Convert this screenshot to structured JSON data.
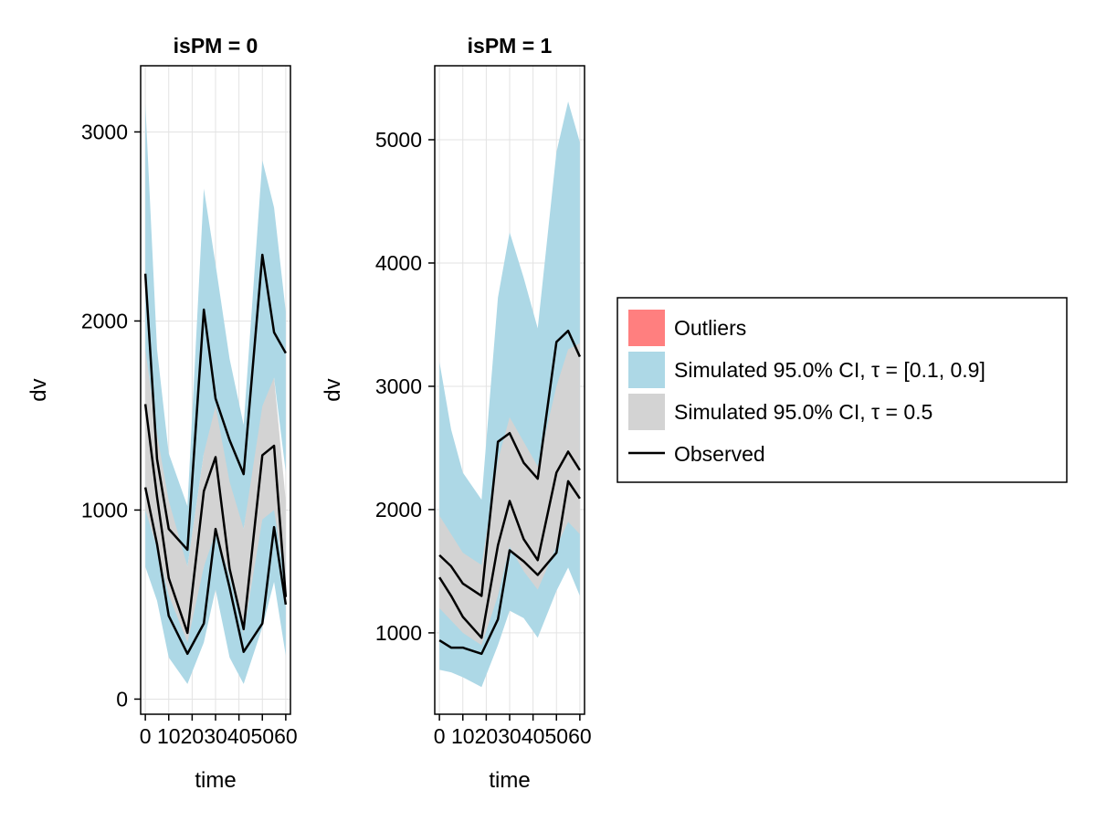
{
  "chart_data": [
    {
      "type": "area",
      "title": "isPM = 0",
      "xlabel": "time",
      "ylabel": "dv",
      "xlim": [
        -2,
        62
      ],
      "ylim": [
        -80,
        3350
      ],
      "xticks": [
        0,
        10,
        20,
        30,
        40,
        50,
        60
      ],
      "xtick_labels": [
        "0",
        "10",
        "20",
        "30",
        "40",
        "50",
        "60"
      ],
      "yticks": [
        0,
        1000,
        2000,
        3000
      ],
      "ytick_labels": [
        "0",
        "1000",
        "2000",
        "3000"
      ],
      "grid": true,
      "x": [
        0,
        5,
        10,
        18,
        25,
        30,
        36,
        42,
        50,
        55,
        60
      ],
      "bands": [
        {
          "name": "Simulated 95.0% CI, τ = [0.1, 0.9]",
          "which": "lower",
          "color": "#add8e6",
          "low": [
            700,
            520,
            220,
            80,
            300,
            580,
            220,
            80,
            380,
            620,
            230
          ],
          "high": [
            1200,
            1050,
            670,
            380,
            700,
            1030,
            800,
            430,
            980,
            1250,
            850
          ]
        },
        {
          "name": "Simulated 95.0% CI, τ = [0.1, 0.9]",
          "which": "upper",
          "color": "#add8e6",
          "low": [
            1700,
            1350,
            1000,
            700,
            1300,
            1200,
            1100,
            900,
            1500,
            1700,
            1200
          ],
          "high": [
            3150,
            1850,
            1300,
            1020,
            2700,
            2300,
            1800,
            1450,
            2850,
            2600,
            2050
          ]
        },
        {
          "name": "Simulated 95.0% CI, τ = 0.5",
          "which": "median",
          "color": "#d3d3d3",
          "low": [
            1000,
            800,
            550,
            300,
            700,
            880,
            650,
            350,
            950,
            1000,
            600
          ],
          "high": [
            1850,
            1400,
            1050,
            700,
            1300,
            1550,
            1150,
            900,
            1550,
            1700,
            1050
          ]
        }
      ],
      "series": [
        {
          "name": "Observed",
          "values": [
            1120,
            820,
            440,
            240,
            400,
            900,
            590,
            250,
            400,
            910,
            500
          ]
        },
        {
          "name": "Observed",
          "values": [
            1560,
            1070,
            640,
            350,
            1100,
            1280,
            690,
            370,
            1290,
            1340,
            540
          ]
        },
        {
          "name": "Observed",
          "values": [
            2250,
            1270,
            900,
            790,
            2060,
            1590,
            1370,
            1190,
            2350,
            1940,
            1830
          ]
        }
      ]
    },
    {
      "type": "area",
      "title": "isPM = 1",
      "xlabel": "time",
      "ylabel": "dv",
      "xlim": [
        -2,
        62
      ],
      "ylim": [
        340,
        5600
      ],
      "xticks": [
        0,
        10,
        20,
        30,
        40,
        50,
        60
      ],
      "xtick_labels": [
        "0",
        "10",
        "20",
        "30",
        "40",
        "50",
        "60"
      ],
      "yticks": [
        1000,
        2000,
        3000,
        4000,
        5000
      ],
      "ytick_labels": [
        "1000",
        "2000",
        "3000",
        "4000",
        "5000"
      ],
      "grid": true,
      "x": [
        0,
        5,
        10,
        18,
        25,
        30,
        36,
        42,
        50,
        55,
        60
      ],
      "bands": [
        {
          "name": "Simulated 95.0% CI, τ = [0.1, 0.9]",
          "which": "lower",
          "color": "#add8e6",
          "low": [
            700,
            680,
            640,
            560,
            900,
            1180,
            1120,
            960,
            1340,
            1530,
            1300
          ],
          "high": [
            1200,
            1150,
            1100,
            1000,
            1400,
            1700,
            1600,
            1400,
            1800,
            2000,
            1850
          ]
        },
        {
          "name": "Simulated 95.0% CI, τ = [0.1, 0.9]",
          "which": "upper",
          "color": "#add8e6",
          "low": [
            1700,
            1600,
            1500,
            1400,
            2100,
            2300,
            2200,
            2000,
            2400,
            2500,
            2300
          ],
          "high": [
            3200,
            2650,
            2300,
            2080,
            3720,
            4250,
            3880,
            3470,
            4900,
            5310,
            4980
          ]
        },
        {
          "name": "Simulated 95.0% CI, τ = 0.5",
          "which": "median",
          "color": "#d3d3d3",
          "low": [
            1200,
            1100,
            1000,
            900,
            1300,
            1700,
            1500,
            1350,
            1700,
            1900,
            1800
          ],
          "high": [
            1950,
            1800,
            1650,
            1550,
            2400,
            2750,
            2550,
            2350,
            3000,
            3300,
            3350
          ]
        }
      ],
      "series": [
        {
          "name": "Observed",
          "values": [
            940,
            880,
            880,
            830,
            1110,
            1670,
            1580,
            1470,
            1650,
            2230,
            2090
          ]
        },
        {
          "name": "Observed",
          "values": [
            1450,
            1300,
            1130,
            960,
            1710,
            2070,
            1760,
            1590,
            2300,
            2470,
            2320
          ]
        },
        {
          "name": "Observed",
          "values": [
            1630,
            1540,
            1400,
            1300,
            2550,
            2620,
            2380,
            2250,
            3360,
            3450,
            3240
          ]
        }
      ]
    }
  ],
  "legend": {
    "placement": "right",
    "items": [
      {
        "label": "Outliers",
        "kind": "patch",
        "color": "#ff7f7f"
      },
      {
        "label": "Simulated 95.0% CI, τ = [0.1, 0.9]",
        "kind": "patch",
        "color": "#add8e6"
      },
      {
        "label": "Simulated 95.0% CI, τ = 0.5",
        "kind": "patch",
        "color": "#d3d3d3"
      },
      {
        "label": "Observed",
        "kind": "line",
        "color": "#000000"
      }
    ]
  }
}
